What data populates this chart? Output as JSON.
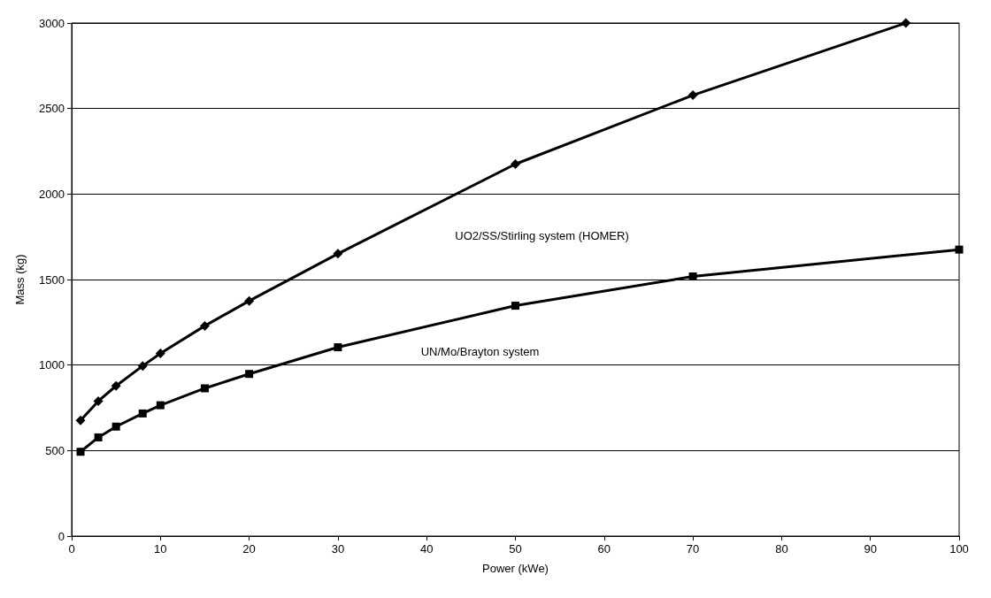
{
  "chart_data": {
    "type": "line",
    "xlabel": "Power (kWe)",
    "ylabel": "Mass (kg)",
    "xlim": [
      0,
      100
    ],
    "xticks": [
      0,
      10,
      20,
      30,
      40,
      50,
      60,
      70,
      80,
      90,
      100
    ],
    "ylim": [
      0,
      3000
    ],
    "yticks": [
      0,
      500,
      1000,
      1500,
      2000,
      2500,
      3000
    ],
    "grid": "y",
    "legend": false,
    "line_style": "solid",
    "series": [
      {
        "name": "UO2/SS/Stirling system (HOMER)",
        "color": "#000000",
        "marker": "diamond",
        "x": [
          1,
          3,
          5,
          8,
          10,
          15,
          20,
          30,
          50,
          70,
          94
        ],
        "values": [
          676,
          789,
          878,
          995,
          1068,
          1229,
          1375,
          1651,
          2175,
          2578,
          3000
        ]
      },
      {
        "name": "UN/Mo/Brayton system",
        "color": "#000000",
        "marker": "square",
        "x": [
          1,
          3,
          5,
          8,
          10,
          15,
          20,
          30,
          50,
          70,
          100
        ],
        "values": [
          493,
          577,
          640,
          717,
          765,
          864,
          948,
          1104,
          1347,
          1518,
          1675
        ]
      }
    ]
  }
}
